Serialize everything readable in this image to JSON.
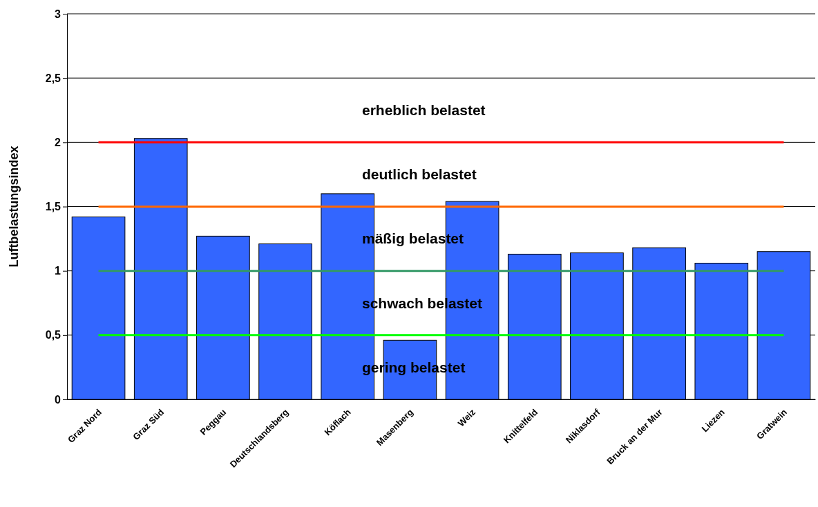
{
  "chart_data": {
    "type": "bar",
    "ylabel": "Luftbelastungsindex",
    "categories": [
      "Graz Nord",
      "Graz Süd",
      "Peggau",
      "Deutschlandsberg",
      "Köflach",
      "Masenberg",
      "Weiz",
      "Knittelfeld",
      "Niklasdorf",
      "Bruck an der Mur",
      "Liezen",
      "Gratwein"
    ],
    "values": [
      1.42,
      2.03,
      1.27,
      1.21,
      1.6,
      0.46,
      1.54,
      1.13,
      1.14,
      1.18,
      1.06,
      1.15
    ],
    "color": "#3366ff",
    "ylim": [
      0,
      3
    ],
    "yticks": [
      0,
      {
        "value": 0.5,
        "label": "0,5"
      },
      1,
      {
        "value": 1.5,
        "label": "1,5"
      },
      2,
      {
        "value": 2.5,
        "label": "2,5"
      },
      3
    ],
    "grid": "y",
    "ref_lines": [
      {
        "axis": "y",
        "value": 2,
        "color": "#ff0000"
      },
      {
        "axis": "y",
        "value": 1.5,
        "color": "#ff6600"
      },
      {
        "axis": "y",
        "value": 1,
        "color": "#339966"
      },
      {
        "axis": "y",
        "value": 0.5,
        "color": "#00ff00"
      }
    ],
    "annotations": [
      "erheblich belastet",
      "deutlich belastet",
      "mäßig belastet",
      "schwach belastet",
      "gering belastet"
    ]
  }
}
